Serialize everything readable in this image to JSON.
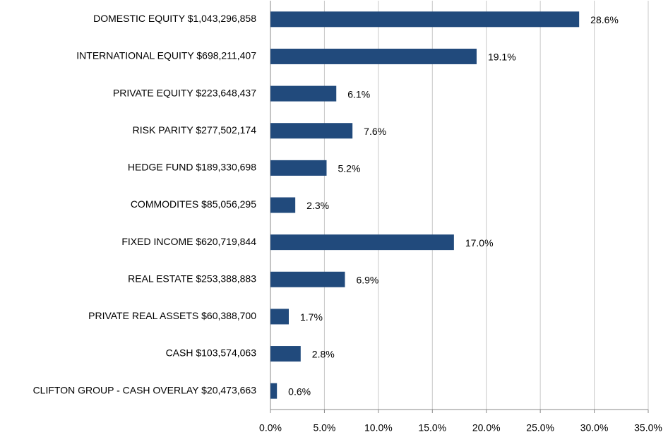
{
  "chart_data": {
    "type": "barh",
    "categories": [
      "DOMESTIC EQUITY  $1,043,296,858",
      "INTERNATIONAL EQUITY  $698,211,407",
      "PRIVATE EQUITY  $223,648,437",
      "RISK PARITY  $277,502,174",
      "HEDGE FUND  $189,330,698",
      "COMMODITES  $85,056,295",
      "FIXED INCOME  $620,719,844",
      "REAL ESTATE  $253,388,883",
      "PRIVATE REAL ASSETS  $60,388,700",
      "CASH  $103,574,063",
      "CLIFTON GROUP - CASH OVERLAY  $20,473,663"
    ],
    "values": [
      28.6,
      19.1,
      6.1,
      7.6,
      5.2,
      2.3,
      17.0,
      6.9,
      1.7,
      2.8,
      0.6
    ],
    "value_labels": [
      "28.6%",
      "19.1%",
      "6.1%",
      "7.6%",
      "5.2%",
      "2.3%",
      "17.0%",
      "6.9%",
      "1.7%",
      "2.8%",
      "0.6%"
    ],
    "color": "#214a7c",
    "xlim": [
      0,
      35
    ],
    "xticks": [
      {
        "value": 0,
        "label": "0.0%"
      },
      {
        "value": 5,
        "label": "5.0%"
      },
      {
        "value": 10,
        "label": "10.0%"
      },
      {
        "value": 15,
        "label": "15.0%"
      },
      {
        "value": 20,
        "label": "20.0%"
      },
      {
        "value": 25,
        "label": "25.0%"
      },
      {
        "value": 30,
        "label": "30.0%"
      },
      {
        "value": 35,
        "label": "35.0%"
      }
    ],
    "grid": true
  }
}
